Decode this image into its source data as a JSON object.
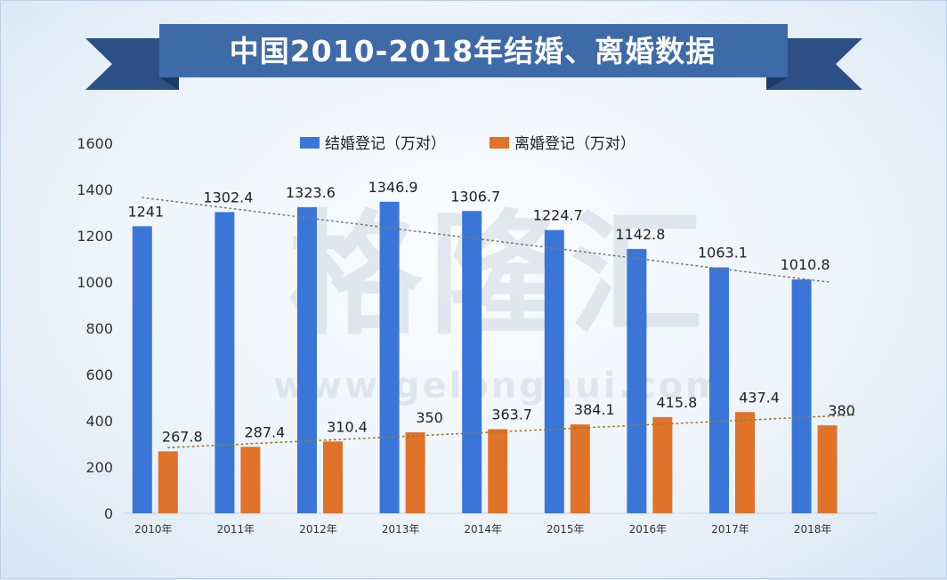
{
  "chart_data": {
    "type": "bar",
    "title": "中国2010-2018年结婚、离婚数据",
    "categories": [
      "2010年",
      "2011年",
      "2012年",
      "2013年",
      "2014年",
      "2015年",
      "2016年",
      "2017年",
      "2018年"
    ],
    "series": [
      {
        "name": "结婚登记（万对）",
        "color": "#3a76d8",
        "values": [
          1241,
          1302.4,
          1323.6,
          1346.9,
          1306.7,
          1224.7,
          1142.8,
          1063.1,
          1010.8
        ]
      },
      {
        "name": "离婚登记（万对）",
        "color": "#e0722a",
        "values": [
          267.8,
          287.4,
          310.4,
          350,
          363.7,
          384.1,
          415.8,
          437.4,
          380
        ]
      }
    ],
    "data_labels": {
      "0": [
        "1241",
        "1302.4",
        "1323.6",
        "1346.9",
        "1306.7",
        "1224.7",
        "1142.8",
        "1063.1",
        "1010.8"
      ],
      "1": [
        "267.8",
        "287.4",
        "310.4",
        "350",
        "363.7",
        "384.1",
        "415.8",
        "437.4",
        "380"
      ]
    },
    "ylim": [
      0,
      1600
    ],
    "yticks": [
      0,
      200,
      400,
      600,
      800,
      1000,
      1200,
      1400,
      1600
    ],
    "trendlines": [
      {
        "series": 0,
        "from": 1365,
        "to": 1000,
        "color": "#7a7a7a"
      },
      {
        "series": 1,
        "from": 284,
        "to": 425,
        "color": "#9a7c22"
      }
    ],
    "grid": false,
    "legend_position": "top",
    "watermark": {
      "main": "格隆汇",
      "sub": "www.gelonghui.com"
    },
    "colors": {
      "banner": "#3e6aa8",
      "banner_dark": "#2c4f86",
      "axis_text": "#333333"
    }
  }
}
